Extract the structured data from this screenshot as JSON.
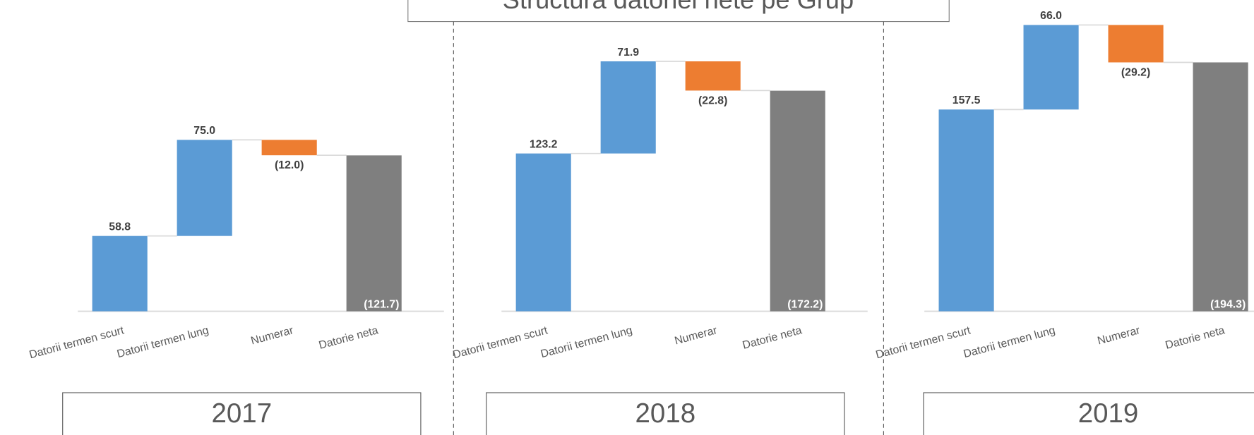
{
  "title": "Structura datoriei nete pe Grup",
  "chart_data": [
    {
      "type": "waterfall",
      "title": "2017",
      "categories": [
        "Datorii termen scurt",
        "Datorii termen lung",
        "Numerar",
        "Datorie neta"
      ],
      "values": [
        58.8,
        75.0,
        -12.0,
        121.7
      ],
      "value_labels": [
        "58.8",
        "75.0",
        "(12.0)",
        "(121.7)"
      ],
      "measures": [
        "relative",
        "relative",
        "relative",
        "total"
      ],
      "colors": {
        "increase": "#5b9bd5",
        "decrease": "#ed7d31",
        "total": "#7f7f7f"
      }
    },
    {
      "type": "waterfall",
      "title": "2018",
      "categories": [
        "Datorii termen scurt",
        "Datorii termen lung",
        "Numerar",
        "Datorie neta"
      ],
      "values": [
        123.2,
        71.9,
        -22.8,
        172.2
      ],
      "value_labels": [
        "123.2",
        "71.9",
        "(22.8)",
        "(172.2)"
      ],
      "measures": [
        "relative",
        "relative",
        "relative",
        "total"
      ],
      "colors": {
        "increase": "#5b9bd5",
        "decrease": "#ed7d31",
        "total": "#7f7f7f"
      }
    },
    {
      "type": "waterfall",
      "title": "2019",
      "categories": [
        "Datorii termen scurt",
        "Datorii termen lung",
        "Numerar",
        "Datorie neta"
      ],
      "values": [
        157.5,
        66.0,
        -29.2,
        194.3
      ],
      "value_labels": [
        "157.5",
        "66.0",
        "(29.2)",
        "(194.3)"
      ],
      "measures": [
        "relative",
        "relative",
        "relative",
        "total"
      ],
      "colors": {
        "increase": "#5b9bd5",
        "decrease": "#ed7d31",
        "total": "#7f7f7f"
      }
    }
  ]
}
